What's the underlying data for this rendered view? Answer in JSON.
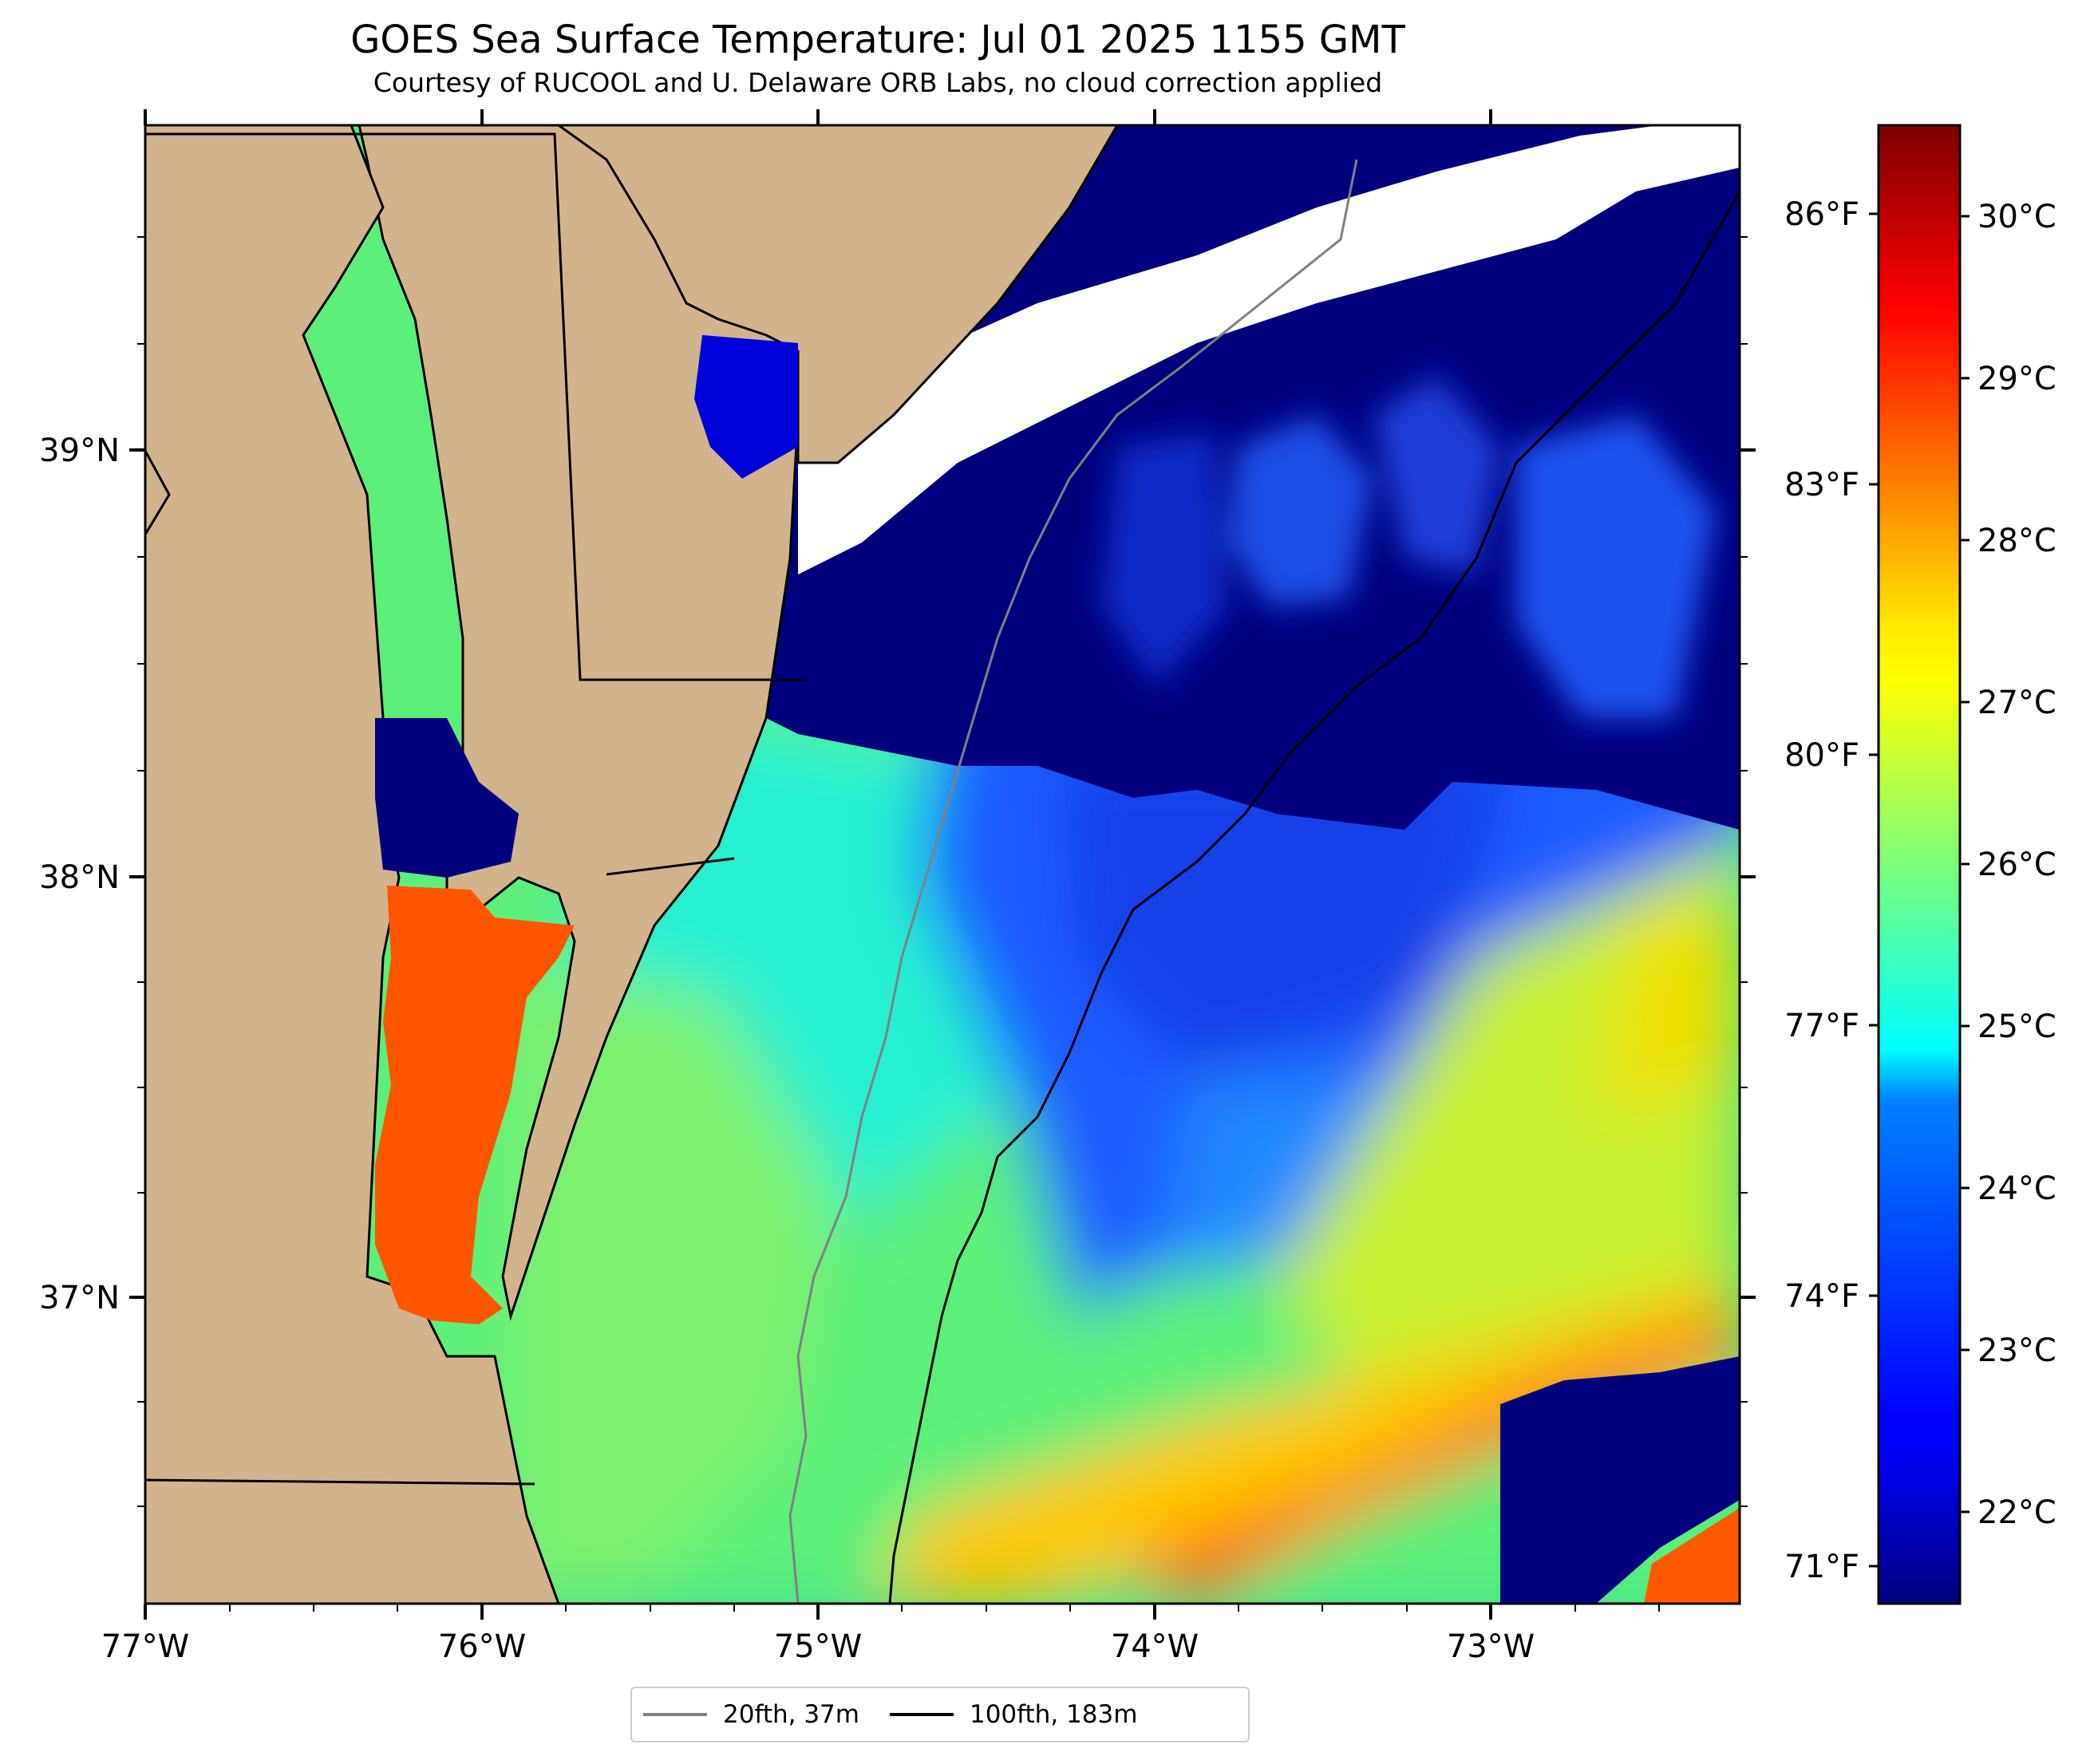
{
  "title": "GOES Sea Surface Temperature: Jul 01 2025 1155 GMT",
  "subtitle": "Courtesy of RUCOOL and U. Delaware ORB Labs, no cloud correction applied",
  "map": {
    "lon_range": [
      -77.0,
      -72.27
    ],
    "lat_range": [
      36.3,
      39.77
    ],
    "lon_ticks": [
      "77°W",
      "76°W",
      "75°W",
      "74°W",
      "73°W"
    ],
    "lat_ticks": [
      "39°N",
      "38°N",
      "37°N"
    ],
    "land_color": "#d2b48c",
    "cloud_color": "#ffffff"
  },
  "colorbar": {
    "colormap": "jet",
    "celsius_range": [
      21.5,
      30.5
    ],
    "celsius_labels": [
      "30°C",
      "29°C",
      "28°C",
      "27°C",
      "26°C",
      "25°C",
      "24°C",
      "23°C",
      "22°C"
    ],
    "fahrenheit_labels": [
      "86°F",
      "83°F",
      "80°F",
      "77°F",
      "74°F",
      "71°F"
    ]
  },
  "legend": {
    "items": [
      {
        "label": "20fth, 37m",
        "color": "#808080"
      },
      {
        "label": "100fth, 183m",
        "color": "#000000"
      }
    ]
  }
}
